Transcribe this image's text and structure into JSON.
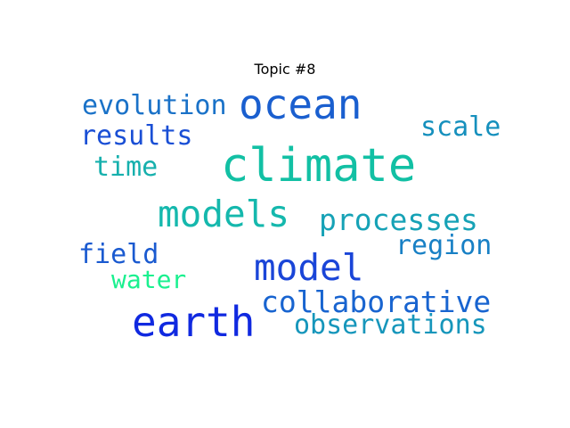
{
  "title": "Topic #8",
  "words": [
    {
      "id": "climate",
      "text": "climate",
      "color": "#12c0a4"
    },
    {
      "id": "ocean",
      "text": "ocean",
      "color": "#1a5fcf"
    },
    {
      "id": "earth",
      "text": "earth",
      "color": "#1029e0"
    },
    {
      "id": "models",
      "text": "models",
      "color": "#15b8ad"
    },
    {
      "id": "model",
      "text": "model",
      "color": "#1a45d8"
    },
    {
      "id": "collaborative",
      "text": "collaborative",
      "color": "#1864d0"
    },
    {
      "id": "processes",
      "text": "processes",
      "color": "#16a2b6"
    },
    {
      "id": "observations",
      "text": "observations",
      "color": "#1696bb"
    },
    {
      "id": "evolution",
      "text": "evolution",
      "color": "#1a72c8"
    },
    {
      "id": "results",
      "text": "results",
      "color": "#1a4fd5"
    },
    {
      "id": "scale",
      "text": "scale",
      "color": "#1690bd"
    },
    {
      "id": "time",
      "text": "time",
      "color": "#16b0ad"
    },
    {
      "id": "region",
      "text": "region",
      "color": "#1880c5"
    },
    {
      "id": "field",
      "text": "field",
      "color": "#1a5ad0"
    },
    {
      "id": "water",
      "text": "water",
      "color": "#1af08f"
    }
  ]
}
